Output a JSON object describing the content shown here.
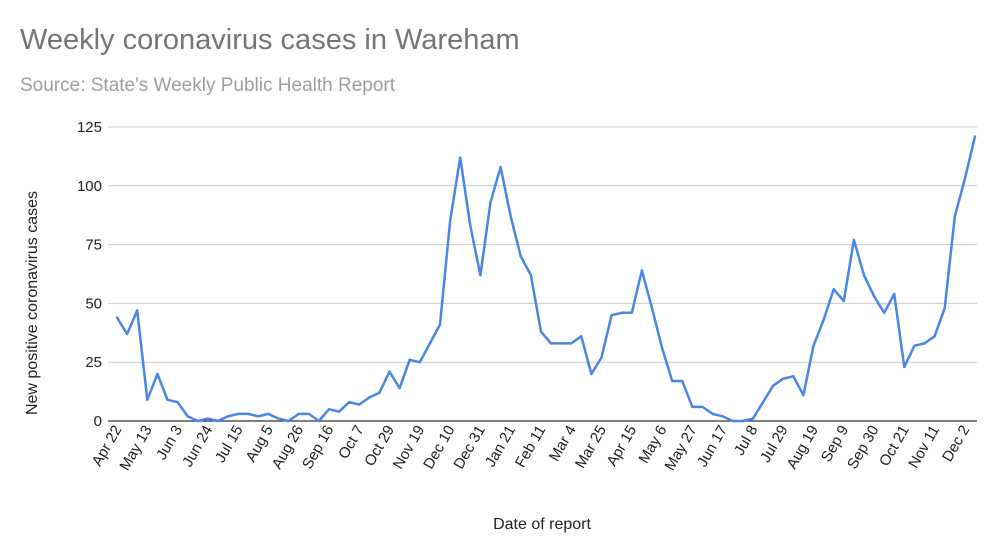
{
  "chart_data": {
    "type": "line",
    "title": "Weekly coronavirus cases in Wareham",
    "subtitle": "Source: State's Weekly Public Health Report",
    "xlabel": "Date of report",
    "ylabel": "New positive coronavirus cases",
    "ylim": [
      0,
      125
    ],
    "yticks": [
      0,
      25,
      50,
      75,
      100,
      125
    ],
    "grid": true,
    "legend": "none",
    "line_color": "#4a86e8",
    "x_tick_labels": [
      "Apr 22",
      "May 13",
      "Jun 3",
      "Jun 24",
      "Jul 15",
      "Aug 5",
      "Aug 26",
      "Sep 16",
      "Oct 7",
      "Oct 29",
      "Nov 19",
      "Dec 10",
      "Dec 31",
      "Jan 21",
      "Feb 11",
      "Mar 4",
      "Mar 25",
      "Apr 15",
      "May 6",
      "May 27",
      "Jun 17",
      "Jul 8",
      "Jul 29",
      "Aug 19",
      "Sep 9",
      "Sep 30",
      "Oct 21",
      "Nov 11",
      "Dec 2"
    ],
    "x_tick_every": 3,
    "series": [
      {
        "values": [
          44,
          37,
          47,
          9,
          20,
          9,
          8,
          2,
          0,
          1,
          0,
          2,
          3,
          3,
          2,
          3,
          1,
          0,
          3,
          3,
          0,
          5,
          4,
          8,
          7,
          10,
          12,
          21,
          14,
          26,
          25,
          33,
          41,
          85,
          112,
          83,
          62,
          93,
          108,
          87,
          70,
          62,
          38,
          33,
          33,
          33,
          36,
          20,
          27,
          45,
          46,
          46,
          64,
          48,
          31,
          17,
          17,
          6,
          6,
          3,
          2,
          0,
          0,
          1,
          8,
          15,
          18,
          19,
          11,
          32,
          43,
          56,
          51,
          77,
          62,
          53,
          46,
          54,
          23,
          32,
          33,
          36,
          48,
          87,
          103,
          121
        ]
      }
    ]
  }
}
